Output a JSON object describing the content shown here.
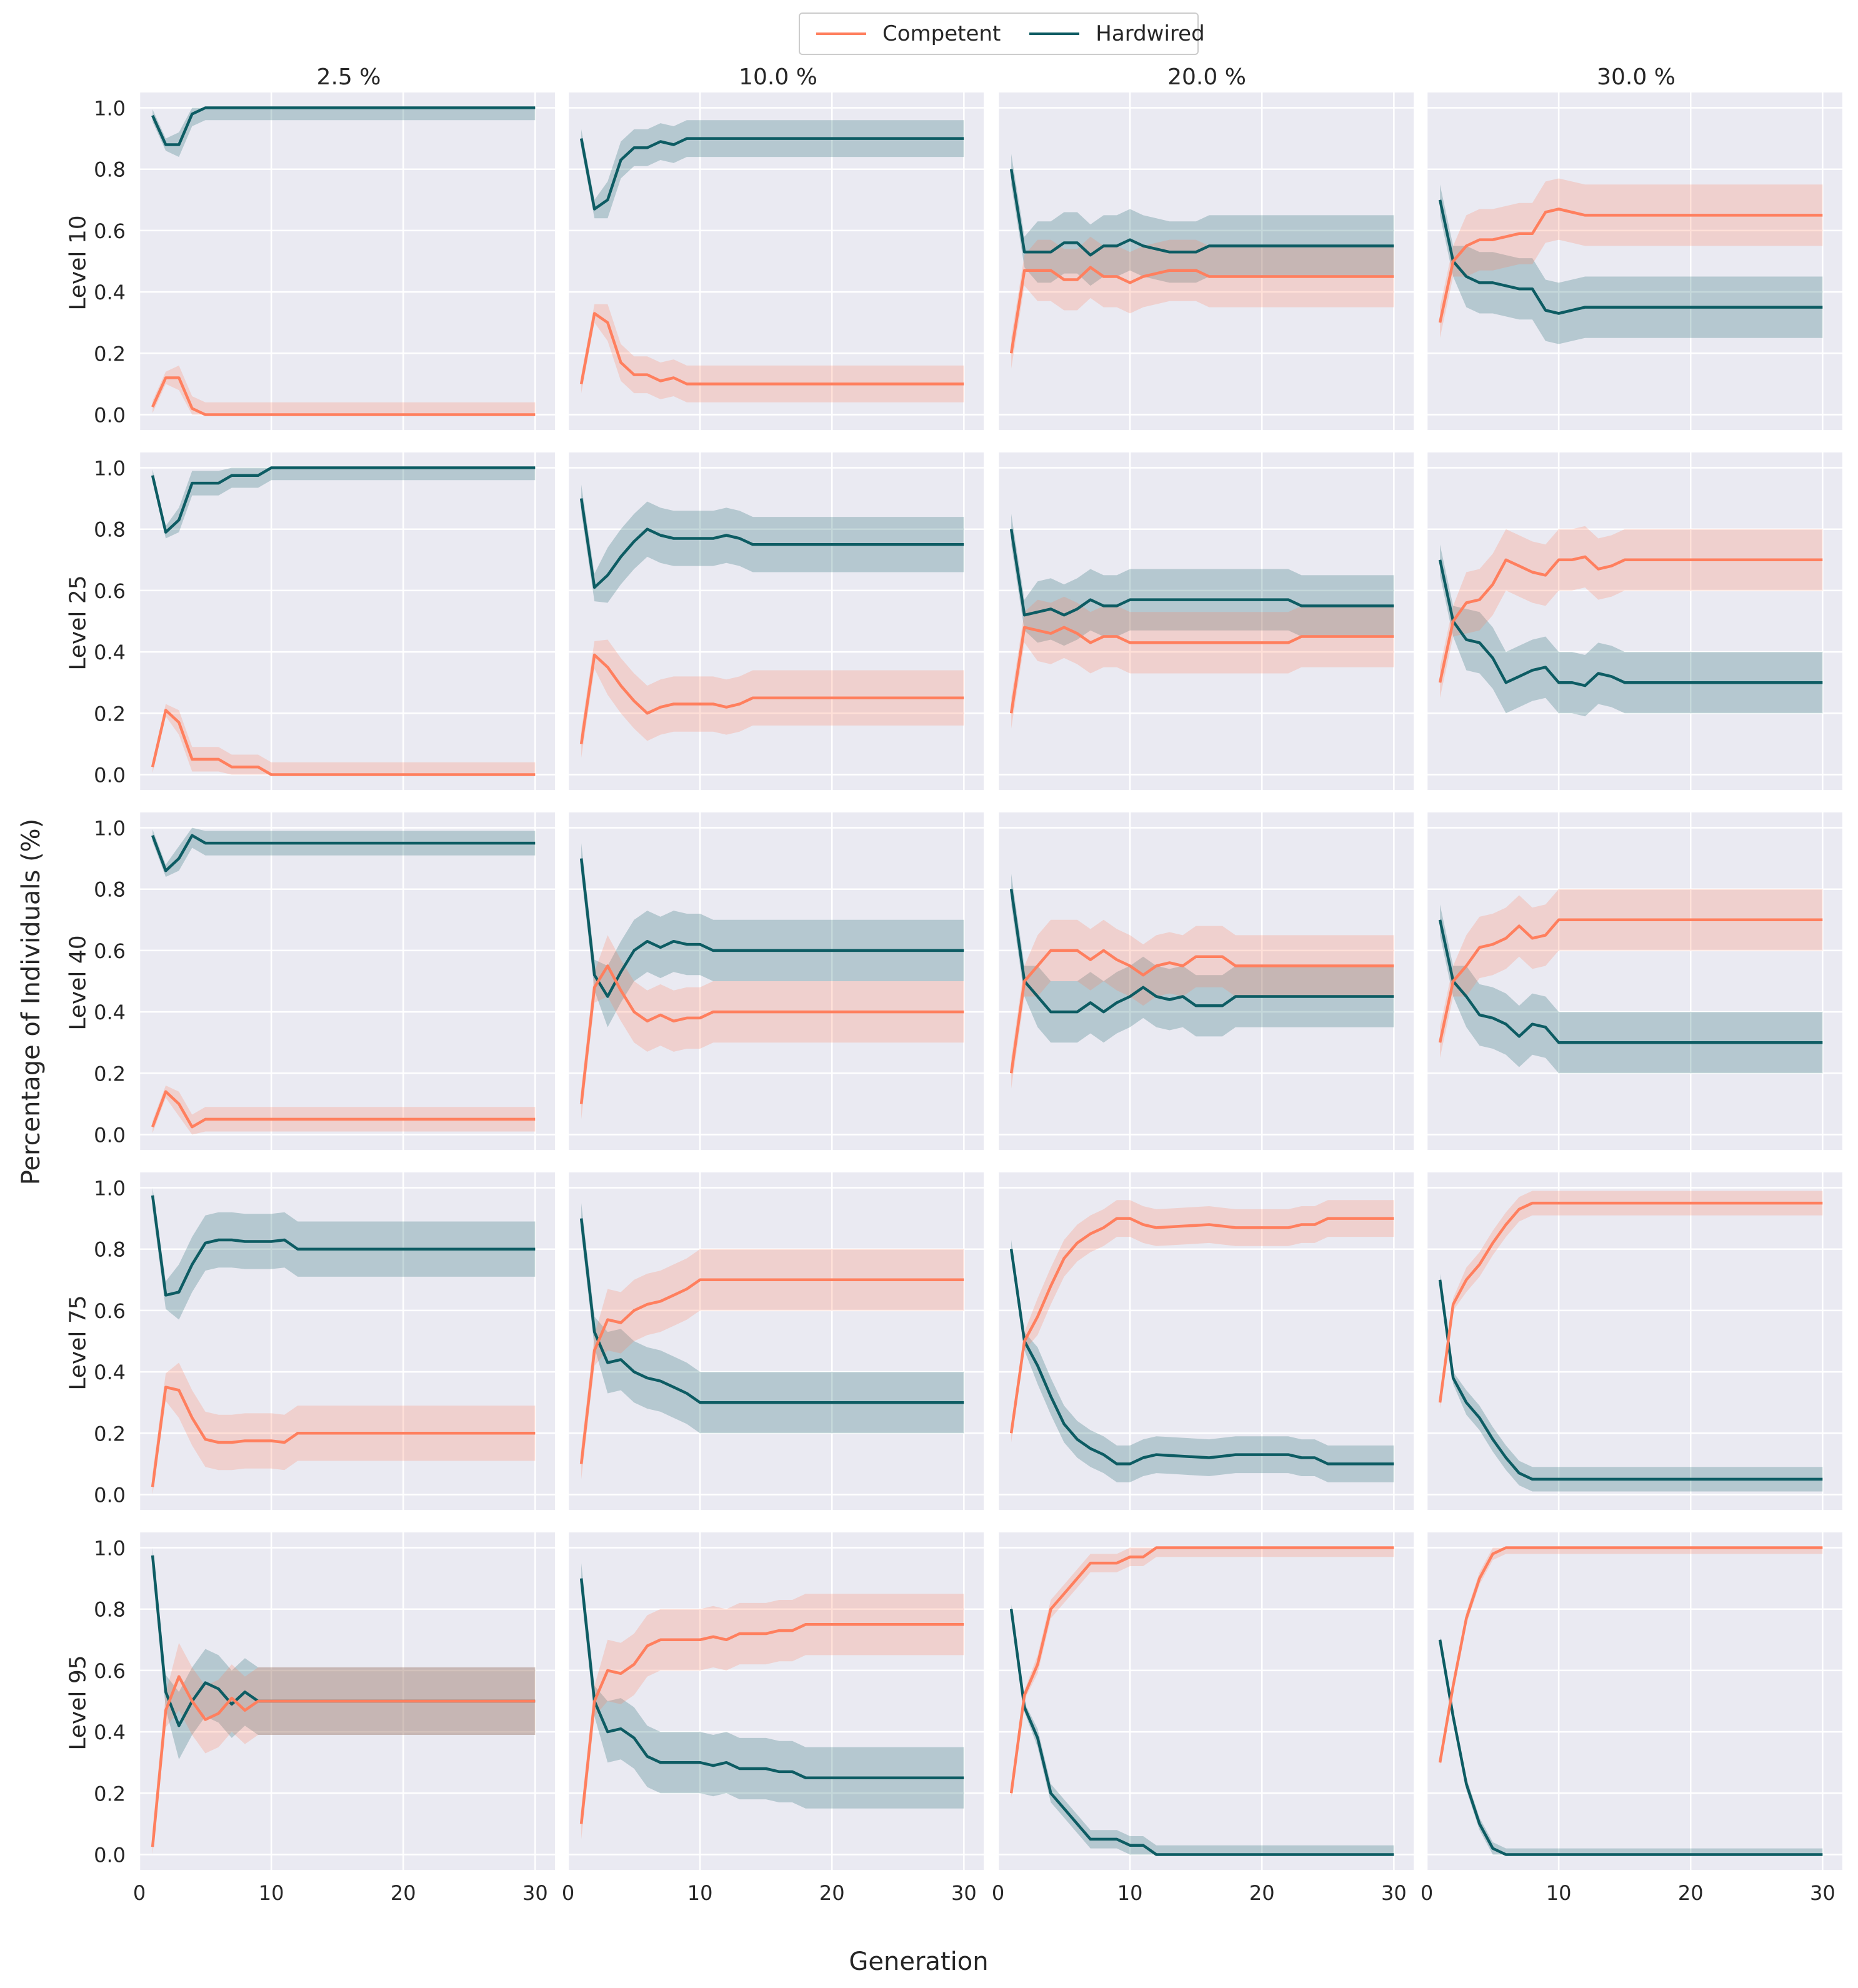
{
  "legend": {
    "items": [
      {
        "label": "Competent",
        "color": "#FF7F5E"
      },
      {
        "label": "Hardwired",
        "color": "#0D5C63"
      }
    ]
  },
  "columns": [
    "2.5 %",
    "10.0 %",
    "20.0 %",
    "30.0 %"
  ],
  "rows": [
    "Level 10",
    "Level 25",
    "Level 40",
    "Level 75",
    "Level 95"
  ],
  "xlabel": "Generation",
  "ylabel": "Percentage of Individuals (%)",
  "chart_data": {
    "type": "line",
    "x_range": [
      1,
      30
    ],
    "xlim": [
      0,
      31.5
    ],
    "ylim": [
      -0.05,
      1.05
    ],
    "x_ticks": [
      0,
      10,
      20,
      30
    ],
    "y_ticks": [
      0.0,
      0.2,
      0.4,
      0.6,
      0.8,
      1.0
    ],
    "grid": true,
    "legend_placement": "top-center",
    "series_names": [
      "Competent",
      "Hardwired"
    ],
    "panels": [
      {
        "row": "Level 10",
        "col": "2.5 %",
        "competent": [
          [
            1,
            0.025
          ],
          [
            2,
            0.12
          ],
          [
            3,
            0.12
          ],
          [
            4,
            0.02
          ],
          [
            5,
            0
          ],
          [
            30,
            0
          ]
        ],
        "band": 0.04
      },
      {
        "row": "Level 10",
        "col": "10.0 %",
        "competent": [
          [
            1,
            0.1
          ],
          [
            2,
            0.33
          ],
          [
            3,
            0.3
          ],
          [
            4,
            0.17
          ],
          [
            5,
            0.13
          ],
          [
            6,
            0.13
          ],
          [
            7,
            0.11
          ],
          [
            8,
            0.12
          ],
          [
            9,
            0.1
          ],
          [
            30,
            0.1
          ]
        ],
        "band": 0.06
      },
      {
        "row": "Level 10",
        "col": "20.0 %",
        "competent": [
          [
            1,
            0.2
          ],
          [
            2,
            0.47
          ],
          [
            3,
            0.47
          ],
          [
            4,
            0.47
          ],
          [
            5,
            0.44
          ],
          [
            6,
            0.44
          ],
          [
            7,
            0.48
          ],
          [
            8,
            0.45
          ],
          [
            9,
            0.45
          ],
          [
            10,
            0.43
          ],
          [
            11,
            0.45
          ],
          [
            12,
            0.46
          ],
          [
            13,
            0.47
          ],
          [
            14,
            0.47
          ],
          [
            15,
            0.47
          ],
          [
            16,
            0.45
          ],
          [
            30,
            0.45
          ]
        ],
        "band": 0.1
      },
      {
        "row": "Level 10",
        "col": "30.0 %",
        "competent": [
          [
            1,
            0.3
          ],
          [
            2,
            0.5
          ],
          [
            3,
            0.55
          ],
          [
            4,
            0.57
          ],
          [
            5,
            0.57
          ],
          [
            6,
            0.58
          ],
          [
            7,
            0.59
          ],
          [
            8,
            0.59
          ],
          [
            9,
            0.66
          ],
          [
            10,
            0.67
          ],
          [
            11,
            0.66
          ],
          [
            12,
            0.65
          ],
          [
            30,
            0.65
          ]
        ],
        "band": 0.1
      },
      {
        "row": "Level 25",
        "col": "2.5 %",
        "competent": [
          [
            1,
            0.025
          ],
          [
            2,
            0.21
          ],
          [
            3,
            0.17
          ],
          [
            4,
            0.05
          ],
          [
            5,
            0.05
          ],
          [
            6,
            0.05
          ],
          [
            7,
            0.025
          ],
          [
            8,
            0.025
          ],
          [
            9,
            0.025
          ],
          [
            10,
            0
          ],
          [
            30,
            0
          ]
        ],
        "band": 0.04
      },
      {
        "row": "Level 25",
        "col": "10.0 %",
        "competent": [
          [
            1,
            0.1
          ],
          [
            2,
            0.39
          ],
          [
            3,
            0.35
          ],
          [
            4,
            0.29
          ],
          [
            5,
            0.24
          ],
          [
            6,
            0.2
          ],
          [
            7,
            0.22
          ],
          [
            8,
            0.23
          ],
          [
            9,
            0.23
          ],
          [
            10,
            0.23
          ],
          [
            11,
            0.23
          ],
          [
            12,
            0.22
          ],
          [
            13,
            0.23
          ],
          [
            14,
            0.25
          ],
          [
            30,
            0.25
          ]
        ],
        "band": 0.09
      },
      {
        "row": "Level 25",
        "col": "20.0 %",
        "competent": [
          [
            1,
            0.2
          ],
          [
            2,
            0.48
          ],
          [
            3,
            0.47
          ],
          [
            4,
            0.46
          ],
          [
            5,
            0.48
          ],
          [
            6,
            0.46
          ],
          [
            7,
            0.43
          ],
          [
            8,
            0.45
          ],
          [
            9,
            0.45
          ],
          [
            10,
            0.43
          ],
          [
            11,
            0.43
          ],
          [
            12,
            0.43
          ],
          [
            20,
            0.43
          ],
          [
            22,
            0.43
          ],
          [
            23,
            0.45
          ],
          [
            30,
            0.45
          ]
        ],
        "band": 0.1
      },
      {
        "row": "Level 25",
        "col": "30.0 %",
        "competent": [
          [
            1,
            0.3
          ],
          [
            2,
            0.5
          ],
          [
            3,
            0.56
          ],
          [
            4,
            0.57
          ],
          [
            5,
            0.62
          ],
          [
            6,
            0.7
          ],
          [
            7,
            0.68
          ],
          [
            8,
            0.66
          ],
          [
            9,
            0.65
          ],
          [
            10,
            0.7
          ],
          [
            11,
            0.7
          ],
          [
            12,
            0.71
          ],
          [
            13,
            0.67
          ],
          [
            14,
            0.68
          ],
          [
            15,
            0.7
          ],
          [
            30,
            0.7
          ]
        ],
        "band": 0.1
      },
      {
        "row": "Level 40",
        "col": "2.5 %",
        "competent": [
          [
            1,
            0.025
          ],
          [
            2,
            0.14
          ],
          [
            3,
            0.1
          ],
          [
            4,
            0.025
          ],
          [
            5,
            0.05
          ],
          [
            30,
            0.05
          ]
        ],
        "band": 0.04
      },
      {
        "row": "Level 40",
        "col": "10.0 %",
        "competent": [
          [
            1,
            0.1
          ],
          [
            2,
            0.48
          ],
          [
            3,
            0.55
          ],
          [
            4,
            0.47
          ],
          [
            5,
            0.4
          ],
          [
            6,
            0.37
          ],
          [
            7,
            0.39
          ],
          [
            8,
            0.37
          ],
          [
            9,
            0.38
          ],
          [
            10,
            0.38
          ],
          [
            11,
            0.4
          ],
          [
            30,
            0.4
          ]
        ],
        "band": 0.1
      },
      {
        "row": "Level 40",
        "col": "20.0 %",
        "competent": [
          [
            1,
            0.2
          ],
          [
            2,
            0.5
          ],
          [
            3,
            0.55
          ],
          [
            4,
            0.6
          ],
          [
            5,
            0.6
          ],
          [
            6,
            0.6
          ],
          [
            7,
            0.57
          ],
          [
            8,
            0.6
          ],
          [
            9,
            0.57
          ],
          [
            10,
            0.55
          ],
          [
            11,
            0.52
          ],
          [
            12,
            0.55
          ],
          [
            13,
            0.56
          ],
          [
            14,
            0.55
          ],
          [
            15,
            0.58
          ],
          [
            16,
            0.58
          ],
          [
            17,
            0.58
          ],
          [
            18,
            0.55
          ],
          [
            30,
            0.55
          ]
        ],
        "band": 0.1
      },
      {
        "row": "Level 40",
        "col": "30.0 %",
        "competent": [
          [
            1,
            0.3
          ],
          [
            2,
            0.5
          ],
          [
            3,
            0.55
          ],
          [
            4,
            0.61
          ],
          [
            5,
            0.62
          ],
          [
            6,
            0.64
          ],
          [
            7,
            0.68
          ],
          [
            8,
            0.64
          ],
          [
            9,
            0.65
          ],
          [
            10,
            0.7
          ],
          [
            30,
            0.7
          ]
        ],
        "band": 0.1
      },
      {
        "row": "Level 75",
        "col": "2.5 %",
        "competent": [
          [
            1,
            0.025
          ],
          [
            2,
            0.35
          ],
          [
            3,
            0.34
          ],
          [
            4,
            0.25
          ],
          [
            5,
            0.18
          ],
          [
            6,
            0.17
          ],
          [
            7,
            0.17
          ],
          [
            8,
            0.175
          ],
          [
            9,
            0.175
          ],
          [
            10,
            0.175
          ],
          [
            11,
            0.17
          ],
          [
            12,
            0.2
          ],
          [
            30,
            0.2
          ]
        ],
        "band": 0.09
      },
      {
        "row": "Level 75",
        "col": "10.0 %",
        "competent": [
          [
            1,
            0.1
          ],
          [
            2,
            0.47
          ],
          [
            3,
            0.57
          ],
          [
            4,
            0.56
          ],
          [
            5,
            0.6
          ],
          [
            6,
            0.62
          ],
          [
            7,
            0.63
          ],
          [
            8,
            0.65
          ],
          [
            9,
            0.67
          ],
          [
            10,
            0.7
          ],
          [
            30,
            0.7
          ]
        ],
        "band": 0.1
      },
      {
        "row": "Level 75",
        "col": "20.0 %",
        "competent": [
          [
            1,
            0.2
          ],
          [
            2,
            0.5
          ],
          [
            3,
            0.58
          ],
          [
            4,
            0.68
          ],
          [
            5,
            0.77
          ],
          [
            6,
            0.82
          ],
          [
            7,
            0.85
          ],
          [
            8,
            0.87
          ],
          [
            9,
            0.9
          ],
          [
            10,
            0.9
          ],
          [
            11,
            0.88
          ],
          [
            12,
            0.87
          ],
          [
            16,
            0.88
          ],
          [
            18,
            0.87
          ],
          [
            22,
            0.87
          ],
          [
            23,
            0.88
          ],
          [
            24,
            0.88
          ],
          [
            25,
            0.9
          ],
          [
            30,
            0.9
          ]
        ],
        "band": 0.06
      },
      {
        "row": "Level 75",
        "col": "30.0 %",
        "competent": [
          [
            1,
            0.3
          ],
          [
            2,
            0.62
          ],
          [
            3,
            0.7
          ],
          [
            4,
            0.75
          ],
          [
            5,
            0.82
          ],
          [
            6,
            0.88
          ],
          [
            7,
            0.93
          ],
          [
            8,
            0.95
          ],
          [
            30,
            0.95
          ]
        ],
        "band": 0.04
      },
      {
        "row": "Level 95",
        "col": "2.5 %",
        "competent": [
          [
            1,
            0.025
          ],
          [
            2,
            0.47
          ],
          [
            3,
            0.58
          ],
          [
            4,
            0.5
          ],
          [
            5,
            0.44
          ],
          [
            6,
            0.46
          ],
          [
            7,
            0.51
          ],
          [
            8,
            0.47
          ],
          [
            9,
            0.5
          ],
          [
            10,
            0.5
          ],
          [
            30,
            0.5
          ]
        ],
        "band": 0.11
      },
      {
        "row": "Level 95",
        "col": "10.0 %",
        "competent": [
          [
            1,
            0.1
          ],
          [
            2,
            0.5
          ],
          [
            3,
            0.6
          ],
          [
            4,
            0.59
          ],
          [
            5,
            0.62
          ],
          [
            6,
            0.68
          ],
          [
            7,
            0.7
          ],
          [
            8,
            0.7
          ],
          [
            9,
            0.7
          ],
          [
            10,
            0.7
          ],
          [
            11,
            0.71
          ],
          [
            12,
            0.7
          ],
          [
            13,
            0.72
          ],
          [
            14,
            0.72
          ],
          [
            15,
            0.72
          ],
          [
            16,
            0.73
          ],
          [
            17,
            0.73
          ],
          [
            18,
            0.75
          ],
          [
            30,
            0.75
          ]
        ],
        "band": 0.1
      },
      {
        "row": "Level 95",
        "col": "20.0 %",
        "competent": [
          [
            1,
            0.2
          ],
          [
            2,
            0.52
          ],
          [
            3,
            0.62
          ],
          [
            4,
            0.8
          ],
          [
            5,
            0.85
          ],
          [
            6,
            0.9
          ],
          [
            7,
            0.95
          ],
          [
            8,
            0.95
          ],
          [
            9,
            0.95
          ],
          [
            10,
            0.97
          ],
          [
            11,
            0.97
          ],
          [
            12,
            1
          ],
          [
            30,
            1
          ]
        ],
        "band": 0.03
      },
      {
        "row": "Level 95",
        "col": "30.0 %",
        "competent": [
          [
            1,
            0.3
          ],
          [
            2,
            0.55
          ],
          [
            3,
            0.77
          ],
          [
            4,
            0.9
          ],
          [
            5,
            0.98
          ],
          [
            6,
            1
          ],
          [
            30,
            1
          ]
        ],
        "band": 0.02
      }
    ]
  }
}
